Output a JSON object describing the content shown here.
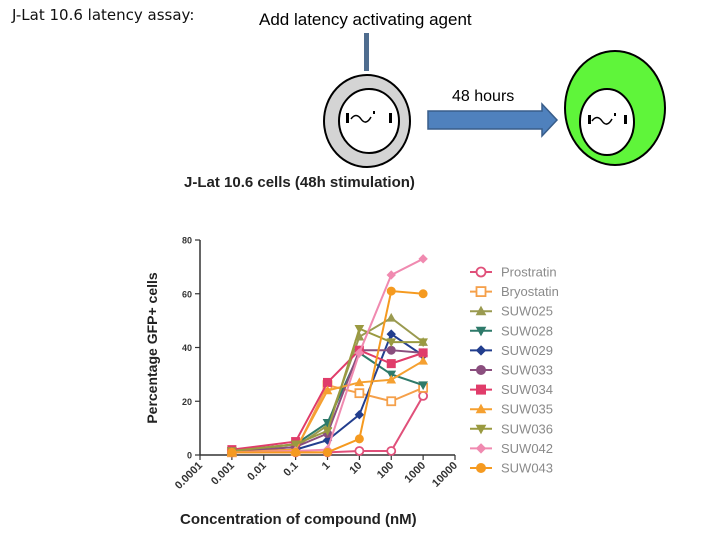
{
  "header": {
    "assay_title": "J-Lat 10.6 latency assay:",
    "agent_label": "Add latency activating agent",
    "duration_label": "48 hours"
  },
  "colors": {
    "resting_cell_fill": "#d4d4d4",
    "activated_cell_fill": "#5ff53a",
    "arrow_fill": "#4f81bd"
  },
  "chart_data": {
    "type": "line",
    "title": "J-Lat 10.6 cells (48h stimulation)",
    "xlabel": "Concentration of compound (nM)",
    "ylabel": "Percentage GFP+ cells",
    "x_scale": "log",
    "x_ticks": [
      "0.0001",
      "0.001",
      "0.01",
      "0.1",
      "1",
      "10",
      "100",
      "1000",
      "10000"
    ],
    "y_ticks": [
      "0",
      "20",
      "40",
      "60",
      "80"
    ],
    "ylim": [
      0,
      80
    ],
    "legend_position": "right",
    "x": [
      0.001,
      0.1,
      1,
      10,
      100,
      1000
    ],
    "series": [
      {
        "name": "Prostratin",
        "color": "#e0507a",
        "marker": "circle-open",
        "values": [
          1,
          1,
          1,
          1.5,
          1.5,
          22
        ]
      },
      {
        "name": "Bryostatin",
        "color": "#f5a04a",
        "marker": "square-open",
        "values": [
          1,
          1.5,
          26,
          23,
          20,
          25
        ]
      },
      {
        "name": "SUW025",
        "color": "#9a9a50",
        "marker": "triangle-up",
        "values": [
          1.5,
          3,
          11,
          44,
          51,
          42
        ]
      },
      {
        "name": "SUW028",
        "color": "#2e7a6a",
        "marker": "triangle-down",
        "values": [
          1.5,
          4,
          12,
          38,
          30,
          26
        ]
      },
      {
        "name": "SUW029",
        "color": "#223e8e",
        "marker": "diamond",
        "values": [
          1,
          2,
          5.5,
          15,
          45,
          37
        ]
      },
      {
        "name": "SUW033",
        "color": "#8a4e7e",
        "marker": "circle",
        "values": [
          1,
          3,
          8,
          39,
          39,
          38
        ]
      },
      {
        "name": "SUW034",
        "color": "#e03c6a",
        "marker": "square",
        "values": [
          2,
          5,
          27,
          39,
          34,
          38
        ]
      },
      {
        "name": "SUW035",
        "color": "#f5a030",
        "marker": "triangle-up",
        "values": [
          1,
          2,
          24,
          27,
          28,
          35
        ]
      },
      {
        "name": "SUW036",
        "color": "#9a9a40",
        "marker": "triangle-down",
        "values": [
          1.5,
          4,
          9,
          47,
          42,
          42
        ]
      },
      {
        "name": "SUW042",
        "color": "#f08ab0",
        "marker": "diamond",
        "values": [
          1,
          1.5,
          2,
          38,
          67,
          73
        ]
      },
      {
        "name": "SUW043",
        "color": "#f59a20",
        "marker": "circle",
        "values": [
          1,
          1,
          1,
          6,
          61,
          60
        ]
      }
    ]
  }
}
